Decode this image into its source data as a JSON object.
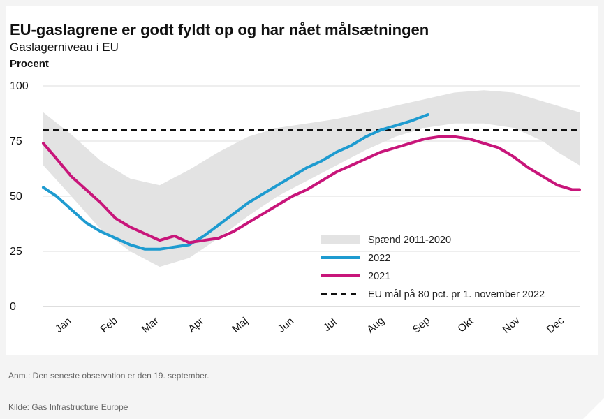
{
  "chart_data": {
    "type": "line",
    "title": "EU-gaslagrene er godt fyldt op og har nået målsætningen",
    "subtitle": "Gaslagerniveau i EU",
    "ylabel": "Procent",
    "xlabel": "",
    "ylim": [
      0,
      100
    ],
    "yticks": [
      0,
      25,
      50,
      75,
      100
    ],
    "xlim": [
      1,
      365
    ],
    "months": [
      "Jan",
      "Feb",
      "Mar",
      "Apr",
      "Maj",
      "Jun",
      "Jul",
      "Aug",
      "Sep",
      "Okt",
      "Nov",
      "Dec"
    ],
    "grid": "horizontal",
    "legend_position": "bottom-right",
    "range_band": {
      "name": "Spænd 2011-2020",
      "color": "#e3e3e3",
      "x": [
        1,
        20,
        40,
        60,
        80,
        100,
        120,
        140,
        160,
        180,
        200,
        220,
        240,
        260,
        280,
        300,
        320,
        340,
        350,
        365
      ],
      "upper": [
        88,
        78,
        66,
        58,
        55,
        62,
        70,
        77,
        81,
        83,
        85,
        88,
        91,
        94,
        97,
        98,
        97,
        93,
        91,
        88
      ],
      "lower": [
        64,
        50,
        35,
        25,
        18,
        22,
        31,
        41,
        50,
        57,
        64,
        71,
        77,
        81,
        83,
        83,
        81,
        75,
        70,
        64
      ]
    },
    "series": [
      {
        "name": "2022",
        "color": "#1e9bd0",
        "x": [
          1,
          10,
          20,
          30,
          40,
          50,
          60,
          70,
          80,
          90,
          100,
          110,
          120,
          130,
          140,
          150,
          160,
          170,
          180,
          190,
          200,
          210,
          220,
          230,
          240,
          250,
          262
        ],
        "y": [
          54,
          50,
          44,
          38,
          34,
          31,
          28,
          26,
          26,
          27,
          28,
          32,
          37,
          42,
          47,
          51,
          55,
          59,
          63,
          66,
          70,
          73,
          77,
          80,
          82,
          84,
          87
        ]
      },
      {
        "name": "2021",
        "color": "#c8157a",
        "x": [
          1,
          10,
          20,
          30,
          40,
          50,
          60,
          70,
          80,
          85,
          90,
          100,
          110,
          120,
          130,
          140,
          150,
          160,
          170,
          180,
          190,
          200,
          210,
          220,
          230,
          240,
          250,
          260,
          270,
          280,
          290,
          300,
          310,
          320,
          330,
          340,
          350,
          360,
          365
        ],
        "y": [
          74,
          67,
          59,
          53,
          47,
          40,
          36,
          33,
          30,
          31,
          32,
          29,
          30,
          31,
          34,
          38,
          42,
          46,
          50,
          53,
          57,
          61,
          64,
          67,
          70,
          72,
          74,
          76,
          77,
          77,
          76,
          74,
          72,
          68,
          63,
          59,
          55,
          53,
          53
        ]
      }
    ],
    "target": {
      "name": "EU mål på 80 pct. pr 1. november 2022",
      "value": 80,
      "style": "dashed",
      "color": "#111111"
    }
  },
  "footer": {
    "note": "Anm.: Den seneste observation er den 19. september.",
    "source": "Kilde: Gas Infrastructure Europe"
  }
}
